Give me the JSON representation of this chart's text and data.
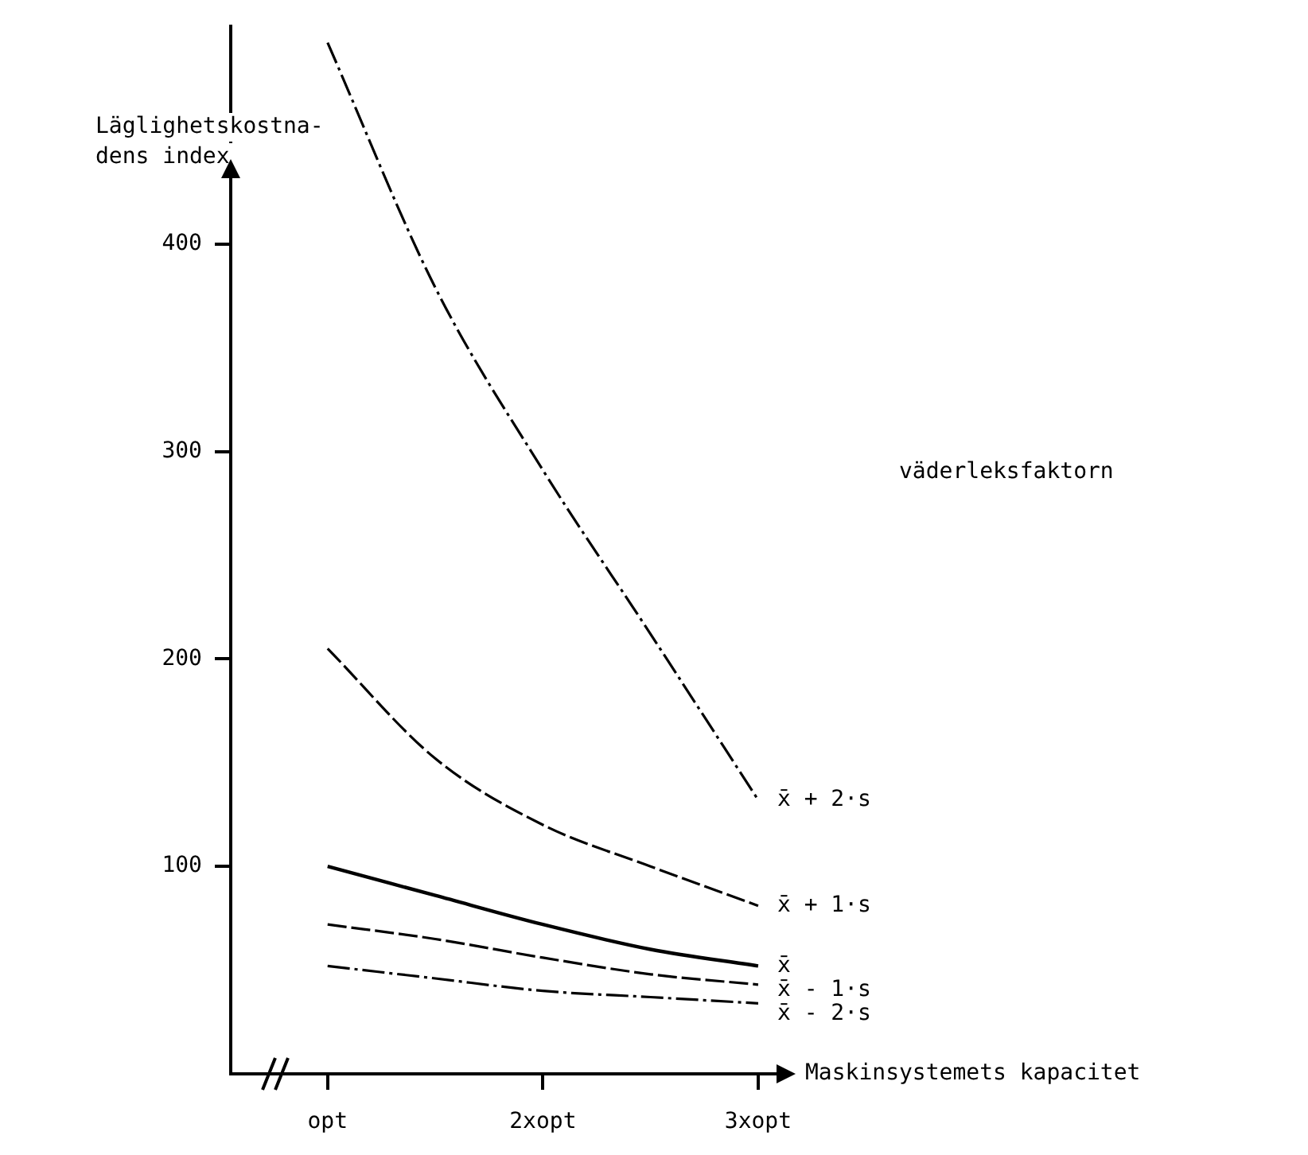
{
  "chart_data": {
    "type": "line",
    "ylabel": "Läglighetskostna-\ndens index",
    "xlabel": "Maskinsystemets kapacitet",
    "annotations": [
      "väderleksfaktorn"
    ],
    "x": [
      1,
      1.5,
      2,
      2.5,
      3
    ],
    "xlim": [
      0.55,
      3.1
    ],
    "xticks": [
      {
        "value": 1,
        "label": "opt"
      },
      {
        "value": 2,
        "label": "2xopt"
      },
      {
        "value": 3,
        "label": "3xopt"
      }
    ],
    "ylim": [
      0,
      505
    ],
    "yticks": [
      100,
      200,
      300,
      400
    ],
    "grid": false,
    "legend": false,
    "marker": "none",
    "series": [
      {
        "name": "x̄ + 2·s",
        "color": "#000000",
        "line_style": "dashdot",
        "values": [
          497,
          379,
          291,
          212,
          132
        ]
      },
      {
        "name": "x̄ + 1·s",
        "color": "#000000",
        "line_style": "dashed",
        "values": [
          205,
          152,
          120,
          100,
          81
        ]
      },
      {
        "name": "x̄",
        "color": "#000000",
        "line_style": "solid",
        "values": [
          100,
          86,
          72,
          60,
          52
        ]
      },
      {
        "name": "x̄ - 1·s",
        "color": "#000000",
        "line_style": "dashed",
        "values": [
          72,
          65,
          56,
          48,
          43
        ]
      },
      {
        "name": "x̄ - 2·s",
        "color": "#000000",
        "line_style": "dashdot",
        "values": [
          52,
          46,
          40,
          37,
          34
        ]
      }
    ]
  }
}
